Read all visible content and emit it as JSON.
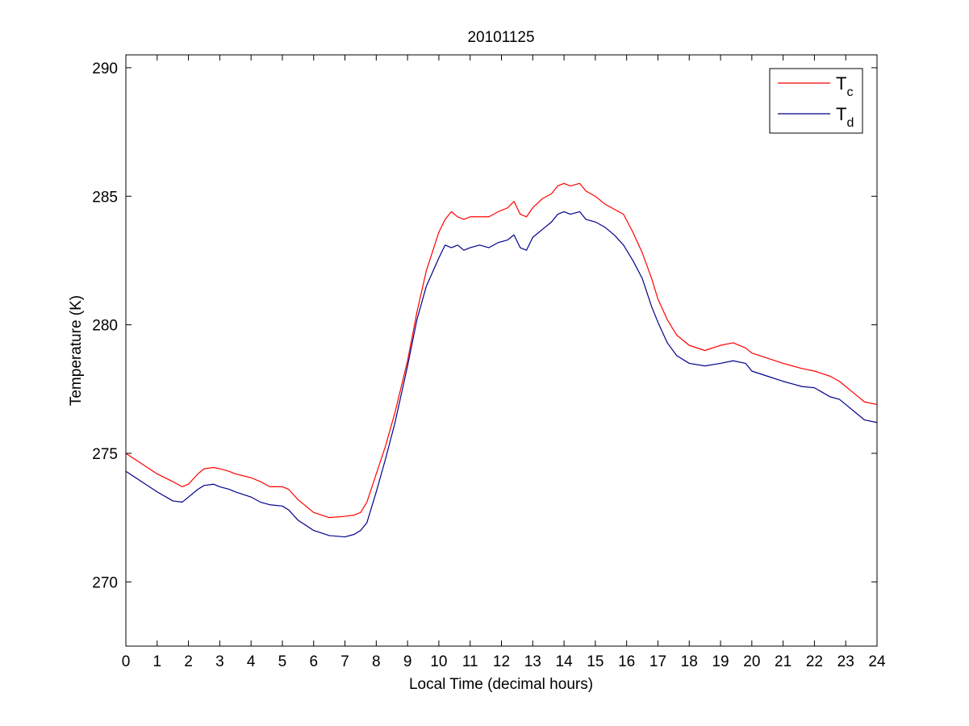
{
  "chart_data": {
    "type": "line",
    "title": "20101125",
    "xlabel": "Local Time (decimal hours)",
    "ylabel": "Temperature (K)",
    "xlim": [
      0,
      24
    ],
    "ylim": [
      267.5,
      290.5
    ],
    "xticks": [
      0,
      1,
      2,
      3,
      4,
      5,
      6,
      7,
      8,
      9,
      10,
      11,
      12,
      13,
      14,
      15,
      16,
      17,
      18,
      19,
      20,
      21,
      22,
      23,
      24
    ],
    "yticks": [
      270,
      275,
      280,
      285,
      290
    ],
    "grid": false,
    "legend_position": "top-right",
    "series": [
      {
        "name": "T",
        "subscript": "c",
        "color": "#ff0000",
        "x": [
          0,
          0.5,
          1.0,
          1.5,
          1.8,
          2.0,
          2.3,
          2.5,
          2.8,
          3.0,
          3.3,
          3.5,
          4.0,
          4.3,
          4.6,
          5.0,
          5.2,
          5.5,
          6.0,
          6.5,
          7.0,
          7.3,
          7.5,
          7.7,
          8.0,
          8.3,
          8.6,
          9.0,
          9.3,
          9.6,
          10.0,
          10.2,
          10.4,
          10.6,
          10.8,
          11.0,
          11.3,
          11.6,
          11.9,
          12.2,
          12.4,
          12.6,
          12.8,
          13.0,
          13.3,
          13.6,
          13.8,
          14.0,
          14.2,
          14.5,
          14.7,
          15.0,
          15.3,
          15.6,
          15.9,
          16.2,
          16.5,
          16.8,
          17.0,
          17.3,
          17.6,
          18.0,
          18.5,
          19.0,
          19.4,
          19.8,
          20.0,
          20.5,
          21.0,
          21.3,
          21.6,
          22.0,
          22.5,
          22.8,
          23.0,
          23.3,
          23.6,
          24.0
        ],
        "y": [
          275.0,
          274.6,
          274.2,
          273.9,
          273.7,
          273.8,
          274.2,
          274.4,
          274.45,
          274.4,
          274.3,
          274.2,
          274.05,
          273.9,
          273.7,
          273.7,
          273.6,
          273.2,
          272.7,
          272.5,
          272.55,
          272.6,
          272.7,
          273.1,
          274.2,
          275.3,
          276.6,
          278.6,
          280.5,
          282.1,
          283.6,
          284.1,
          284.4,
          284.2,
          284.1,
          284.2,
          284.2,
          284.2,
          284.4,
          284.55,
          284.8,
          284.3,
          284.2,
          284.55,
          284.9,
          285.1,
          285.4,
          285.5,
          285.4,
          285.5,
          285.2,
          285.0,
          284.7,
          284.5,
          284.3,
          283.6,
          282.8,
          281.8,
          281.0,
          280.2,
          279.6,
          279.2,
          279.0,
          279.2,
          279.3,
          279.1,
          278.9,
          278.7,
          278.5,
          278.4,
          278.3,
          278.2,
          278.0,
          277.8,
          277.6,
          277.3,
          277.0,
          276.9
        ]
      },
      {
        "name": "T",
        "subscript": "d",
        "color": "#00008b",
        "x": [
          0,
          0.5,
          1.0,
          1.5,
          1.8,
          2.0,
          2.3,
          2.5,
          2.8,
          3.0,
          3.3,
          3.5,
          4.0,
          4.3,
          4.6,
          5.0,
          5.2,
          5.5,
          6.0,
          6.5,
          7.0,
          7.3,
          7.5,
          7.7,
          8.0,
          8.3,
          8.6,
          9.0,
          9.3,
          9.6,
          10.0,
          10.2,
          10.4,
          10.6,
          10.8,
          11.0,
          11.3,
          11.6,
          11.9,
          12.2,
          12.4,
          12.6,
          12.8,
          13.0,
          13.3,
          13.6,
          13.8,
          14.0,
          14.2,
          14.5,
          14.7,
          15.0,
          15.3,
          15.6,
          15.9,
          16.2,
          16.5,
          16.8,
          17.0,
          17.3,
          17.6,
          18.0,
          18.5,
          19.0,
          19.4,
          19.8,
          20.0,
          20.5,
          21.0,
          21.3,
          21.6,
          22.0,
          22.5,
          22.8,
          23.0,
          23.3,
          23.6,
          24.0
        ],
        "y": [
          274.3,
          273.9,
          273.5,
          273.15,
          273.1,
          273.3,
          273.6,
          273.75,
          273.8,
          273.7,
          273.6,
          273.5,
          273.3,
          273.1,
          273.0,
          272.95,
          272.8,
          272.4,
          272.0,
          271.8,
          271.75,
          271.85,
          272.0,
          272.3,
          273.5,
          274.8,
          276.2,
          278.4,
          280.2,
          281.5,
          282.6,
          283.1,
          283.0,
          283.1,
          282.9,
          283.0,
          283.1,
          283.0,
          283.2,
          283.3,
          283.5,
          283.0,
          282.9,
          283.4,
          283.7,
          284.0,
          284.3,
          284.4,
          284.3,
          284.4,
          284.1,
          284.0,
          283.8,
          283.5,
          283.1,
          282.5,
          281.8,
          280.7,
          280.1,
          279.3,
          278.8,
          278.5,
          278.4,
          278.5,
          278.6,
          278.5,
          278.2,
          278.0,
          277.8,
          277.7,
          277.6,
          277.55,
          277.2,
          277.1,
          276.9,
          276.6,
          276.3,
          276.2
        ]
      }
    ]
  }
}
